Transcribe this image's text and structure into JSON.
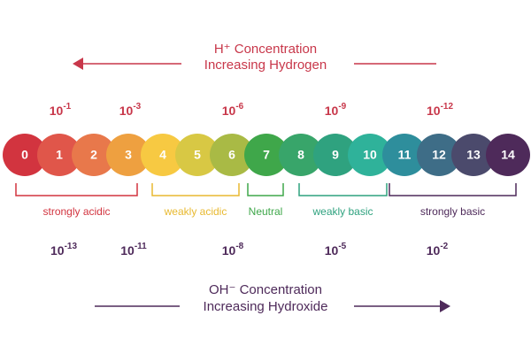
{
  "top": {
    "title": "H⁺ Concentration",
    "subtitle": "Increasing Hydrogen",
    "color": "#c8374a",
    "exponents": [
      {
        "base": "10",
        "exp": "-1"
      },
      {
        "base": "10",
        "exp": "-3"
      },
      {
        "base": "10",
        "exp": "-6"
      },
      {
        "base": "10",
        "exp": "-9"
      },
      {
        "base": "10",
        "exp": "-12"
      }
    ]
  },
  "scale": [
    {
      "label": "0",
      "color": "#d2343f"
    },
    {
      "label": "1",
      "color": "#e0564a"
    },
    {
      "label": "2",
      "color": "#e8784b"
    },
    {
      "label": "3",
      "color": "#eea040"
    },
    {
      "label": "4",
      "color": "#f7c942"
    },
    {
      "label": "5",
      "color": "#d8c844"
    },
    {
      "label": "6",
      "color": "#a9ba45"
    },
    {
      "label": "7",
      "color": "#3fa74a"
    },
    {
      "label": "8",
      "color": "#38a56a"
    },
    {
      "label": "9",
      "color": "#2fa27f"
    },
    {
      "label": "10",
      "color": "#2fb29a"
    },
    {
      "label": "11",
      "color": "#2e8e9c"
    },
    {
      "label": "12",
      "color": "#3e6d87"
    },
    {
      "label": "13",
      "color": "#4b4a6c"
    },
    {
      "label": "14",
      "color": "#4e2a5a"
    }
  ],
  "groups": [
    {
      "label": "strongly acidic",
      "color": "#d2343f"
    },
    {
      "label": "weakly acidic",
      "color": "#e8b930"
    },
    {
      "label": "Neutral",
      "color": "#3fa74a"
    },
    {
      "label": "weakly basic",
      "color": "#2fa27f"
    },
    {
      "label": "strongly basic",
      "color": "#4e2a5a"
    }
  ],
  "bottom": {
    "title": "OH⁻ Concentration",
    "subtitle": "Increasing Hydroxide",
    "color": "#4e2a5a",
    "exponents": [
      {
        "base": "10",
        "exp": "-13"
      },
      {
        "base": "10",
        "exp": "-11"
      },
      {
        "base": "10",
        "exp": "-8"
      },
      {
        "base": "10",
        "exp": "-5"
      },
      {
        "base": "10",
        "exp": "-2"
      }
    ]
  }
}
